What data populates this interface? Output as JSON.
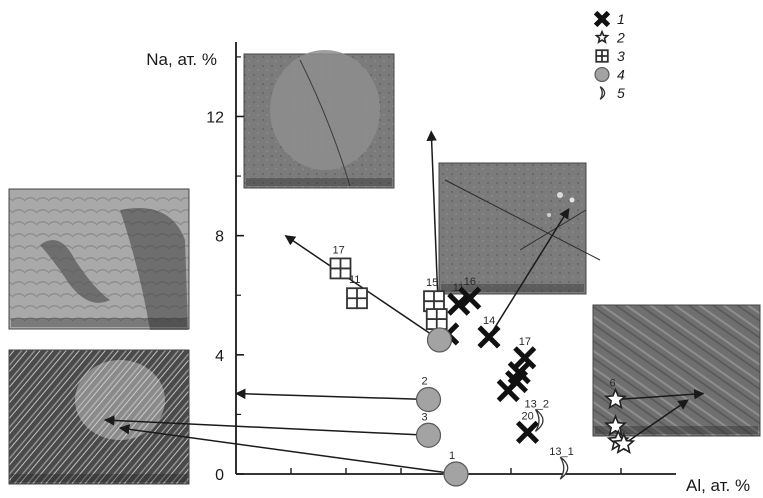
{
  "chart_data": {
    "type": "scatter",
    "title": "",
    "xlabel": "Al, ат. %",
    "ylabel": "Na, ат. %",
    "xlim": [
      8,
      24
    ],
    "ylim": [
      0,
      14.5
    ],
    "yticks": [
      0,
      4,
      8,
      12
    ],
    "legend_position": "top-right",
    "series": [
      {
        "name": "1",
        "marker": "cross",
        "points": [
          {
            "label": "",
            "x": 15.7,
            "y": 4.7
          },
          {
            "label": "11",
            "x": 16.1,
            "y": 5.7
          },
          {
            "label": "16",
            "x": 16.5,
            "y": 5.9
          },
          {
            "label": "14",
            "x": 17.2,
            "y": 4.6
          },
          {
            "label": "17",
            "x": 18.5,
            "y": 3.9
          },
          {
            "label": "",
            "x": 18.3,
            "y": 3.4
          },
          {
            "label": "",
            "x": 18.2,
            "y": 3.1
          },
          {
            "label": "",
            "x": 17.9,
            "y": 2.8
          },
          {
            "label": "20",
            "x": 18.6,
            "y": 1.4
          }
        ]
      },
      {
        "name": "2",
        "marker": "star",
        "points": [
          {
            "label": "6",
            "x": 21.8,
            "y": 2.5
          },
          {
            "label": "",
            "x": 21.8,
            "y": 1.6
          },
          {
            "label": "",
            "x": 21.9,
            "y": 1.1
          },
          {
            "label": "",
            "x": 22.1,
            "y": 1.0
          }
        ]
      },
      {
        "name": "3",
        "marker": "boxed-cross",
        "points": [
          {
            "label": "17",
            "x": 11.8,
            "y": 6.9
          },
          {
            "label": "11",
            "x": 12.4,
            "y": 5.9
          },
          {
            "label": "15",
            "x": 15.2,
            "y": 5.8
          },
          {
            "label": "",
            "x": 15.3,
            "y": 5.2
          }
        ]
      },
      {
        "name": "4",
        "marker": "circle",
        "points": [
          {
            "label": "",
            "x": 15.4,
            "y": 4.5
          },
          {
            "label": "2",
            "x": 15.0,
            "y": 2.5
          },
          {
            "label": "3",
            "x": 15.0,
            "y": 1.3
          },
          {
            "label": "1",
            "x": 16.0,
            "y": 0.0
          }
        ]
      },
      {
        "name": "5",
        "marker": "crescent",
        "points": [
          {
            "label": "13_2",
            "x": 19.0,
            "y": 1.8
          },
          {
            "label": "13_1",
            "x": 19.9,
            "y": 0.2
          }
        ]
      }
    ],
    "insets": [
      {
        "points_to": {
          "x": 15.1,
          "y": 11.5
        }
      },
      {
        "points_to": {
          "x": 20.1,
          "y": 8.9
        }
      },
      {
        "points_to": {
          "x": 9.8,
          "y": 8.0
        }
      },
      {
        "points_to": {
          "x": 8.0,
          "y": 2.7
        }
      },
      {
        "points_to": {
          "x": 25.0,
          "y": 2.7
        }
      }
    ]
  }
}
